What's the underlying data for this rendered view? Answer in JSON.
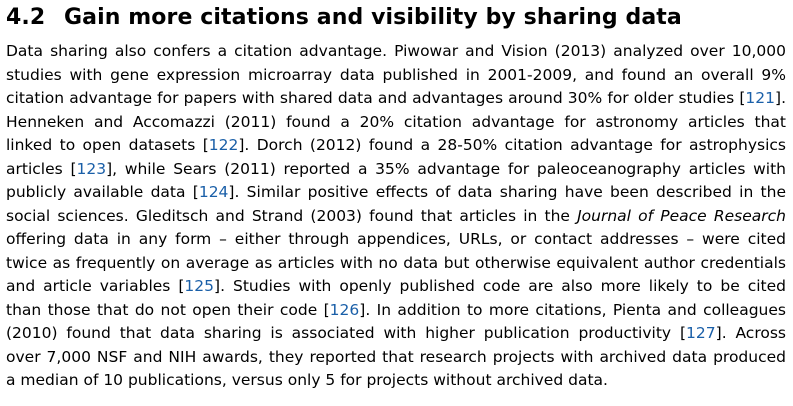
{
  "section": {
    "number": "4.2",
    "title": "Gain more citations and visibility by sharing data"
  },
  "citations": {
    "c121": "121",
    "c122": "122",
    "c123": "123",
    "c124": "124",
    "c125": "125",
    "c126": "126",
    "c127": "127"
  },
  "paragraph": {
    "l1": "Data sharing also confers a citation advantage. Piwowar and Vision (2013) analyzed over 10,000",
    "l2": "studies with gene expression microarray data published in 2001-2009, and found an overall 9%",
    "l3a": "citation advantage for papers with shared data and advantages around 30% for older studies ",
    "l3b": ".",
    "l4": "Henneken and Accomazzi (2011) found a 20% citation advantage for astronomy articles that",
    "l5a": "linked to open datasets ",
    "l5b": ". Dorch (2012) found a 28-50% citation advantage for astrophysics",
    "l6a": "articles ",
    "l6b": ", while Sears (2011) reported a 35% advantage for paleoceanography articles with",
    "l7a": "publicly available data ",
    "l7b": ". Similar positive effects of data sharing have been described in the",
    "l8": "social sciences. Gleditsch and Strand (2003) found that articles in the",
    "l8_journal": "Journal of Peace Research",
    "l9": "offering data in any form – either through appendices, URLs, or contact addresses – were cited",
    "l10": "twice as frequently on average as articles with no data but otherwise equivalent author credentials",
    "l11a": "and article variables ",
    "l11b": ". Studies with openly published code are also more likely to be cited",
    "l12a": "than those that do not open their code ",
    "l12b": ". In addition to more citations, Pienta and colleagues",
    "l13a": "(2010) found that data sharing is associated with higher publication productivity ",
    "l13b": ". Across",
    "l14": "over 7,000 NSF and NIH awards, they reported that research projects with archived data produced",
    "l15": "a median of 10 publications, versus only 5 for projects without archived data."
  },
  "colors": {
    "citation_link": "#1a5fa8",
    "text": "#000000",
    "background": "#ffffff"
  }
}
